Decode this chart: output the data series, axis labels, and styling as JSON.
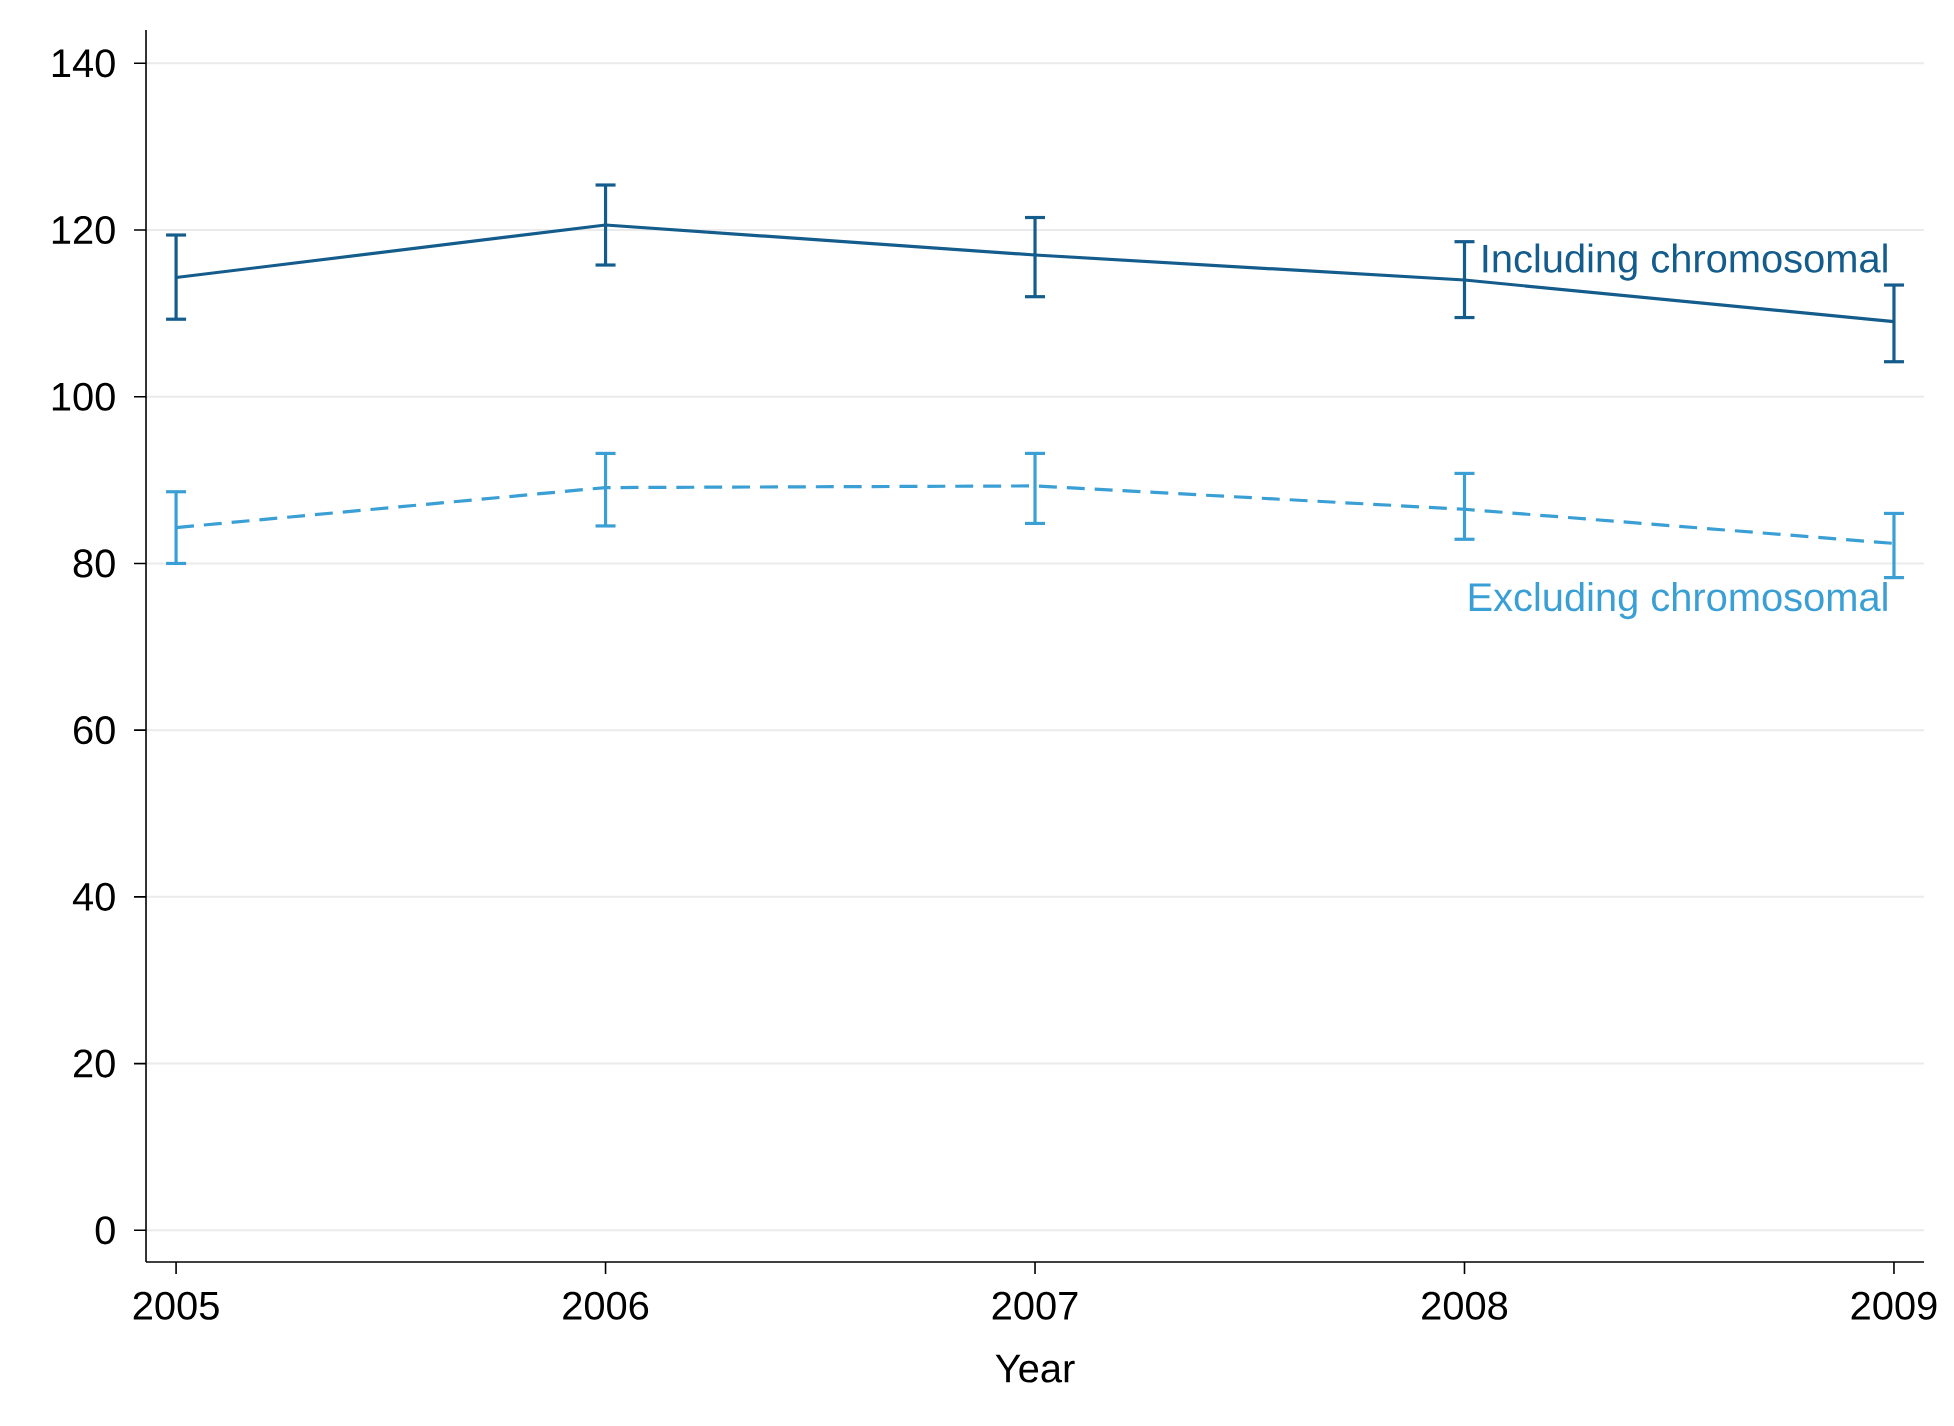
{
  "chart_data": {
    "type": "line",
    "xlabel": "Year",
    "x": [
      2005,
      2006,
      2007,
      2008,
      2009
    ],
    "series": [
      {
        "name": "Including chromosomal",
        "color": "#135c8c",
        "line_style": "solid",
        "values": [
          114.3,
          120.6,
          117,
          114,
          109
        ],
        "errors": [
          [
            109.3,
            119.4
          ],
          [
            115.8,
            125.4
          ],
          [
            112,
            121.5
          ],
          [
            109.5,
            118.6
          ],
          [
            104.2,
            113.4
          ]
        ]
      },
      {
        "name": "Excluding chromosomal",
        "color": "#3a9fd4",
        "line_style": "dashed",
        "values": [
          84.3,
          89.1,
          89.3,
          86.5,
          82.4
        ],
        "errors": [
          [
            80,
            88.6
          ],
          [
            84.5,
            93.2
          ],
          [
            84.8,
            93.2
          ],
          [
            82.9,
            90.8
          ],
          [
            78.3,
            86
          ]
        ]
      }
    ],
    "xlim": [
      2004.93,
      2009.07
    ],
    "ylim": [
      -3.8,
      144
    ],
    "xticks": [
      2005,
      2006,
      2007,
      2008,
      2009
    ],
    "yticks": [
      0,
      20,
      40,
      60,
      80,
      100,
      120,
      140
    ],
    "grid": "y",
    "marker": "none"
  }
}
